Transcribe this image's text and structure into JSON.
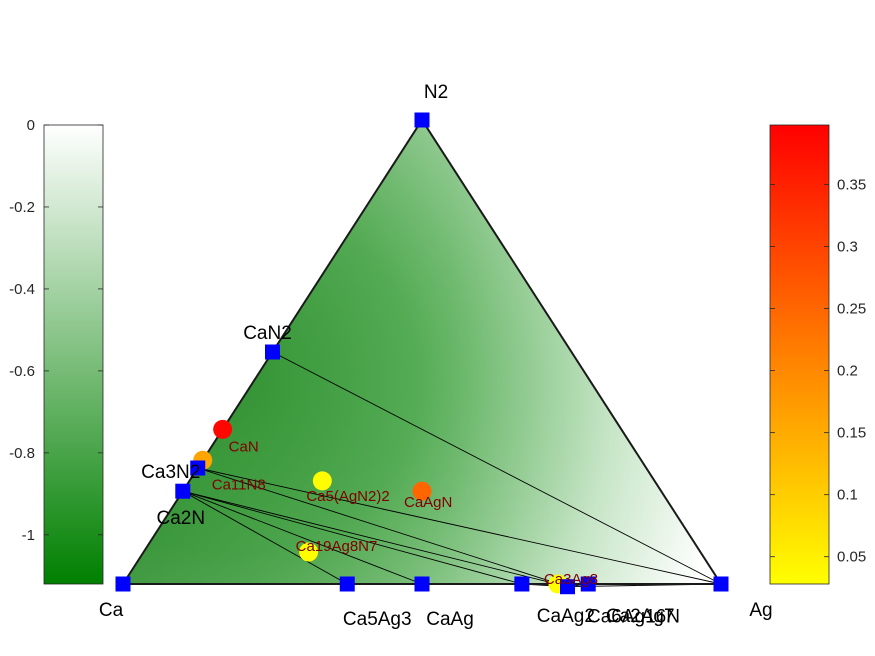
{
  "chart_data": {
    "type": "ternary-phase-diagram",
    "corners": {
      "left": "Ca",
      "right": "Ag",
      "top": "N2"
    },
    "stable_phases": [
      {
        "name": "Ca",
        "composition": {
          "Ca": 1,
          "Ag": 0,
          "N2": 0
        }
      },
      {
        "name": "Ag",
        "composition": {
          "Ca": 0,
          "Ag": 1,
          "N2": 0
        }
      },
      {
        "name": "N2",
        "composition": {
          "Ca": 0,
          "Ag": 0,
          "N2": 1
        }
      },
      {
        "name": "CaN2",
        "composition": {
          "Ca": 0.5,
          "Ag": 0,
          "N2": 0.5
        }
      },
      {
        "name": "Ca3N2",
        "composition": {
          "Ca": 0.75,
          "Ag": 0,
          "N2": 0.25
        }
      },
      {
        "name": "Ca2N",
        "composition": {
          "Ca": 0.8,
          "Ag": 0,
          "N2": 0.2
        }
      },
      {
        "name": "Ca5Ag3",
        "composition": {
          "Ca": 0.625,
          "Ag": 0.375,
          "N2": 0
        }
      },
      {
        "name": "CaAg",
        "composition": {
          "Ca": 0.5,
          "Ag": 0.5,
          "N2": 0
        }
      },
      {
        "name": "CaAg2",
        "composition": {
          "Ca": 0.333,
          "Ag": 0.667,
          "N2": 0
        }
      },
      {
        "name": "Ca2Ag7",
        "composition": {
          "Ca": 0.222,
          "Ag": 0.778,
          "N2": 0
        }
      },
      {
        "name": "Ca6Ag16N",
        "composition": {
          "Ca": 0.2727,
          "Ag": 0.7273,
          "N2": 0.0227
        }
      }
    ],
    "unstable_phases": [
      {
        "name": "CaN",
        "composition": {
          "Ca": 0.6667,
          "Ag": 0,
          "N2": 0.3333
        },
        "e_above_hull": 0.39
      },
      {
        "name": "Ca11N8",
        "composition": {
          "Ca": 0.7333,
          "Ag": 0,
          "N2": 0.2667
        },
        "e_above_hull": 0.16
      },
      {
        "name": "Ca5(AgN2)2",
        "composition": {
          "Ca": 0.5556,
          "Ag": 0.2222,
          "N2": 0.2222
        },
        "e_above_hull": 0.03
      },
      {
        "name": "CaAgN",
        "composition": {
          "Ca": 0.4,
          "Ag": 0.4,
          "N2": 0.2
        },
        "e_above_hull": 0.25
      },
      {
        "name": "Ca19Ag8N7",
        "composition": {
          "Ca": 0.6552,
          "Ag": 0.2759,
          "N2": 0.069
        },
        "e_above_hull": 0.03
      },
      {
        "name": "Ca3Ag8",
        "composition": {
          "Ca": 0.2727,
          "Ag": 0.7273,
          "N2": 0
        },
        "e_above_hull": 0.03
      }
    ],
    "tie_lines": [
      [
        "CaN2",
        "Ag"
      ],
      [
        "Ca3N2",
        "Ag"
      ],
      [
        "Ca3N2",
        "Ca6Ag16N"
      ],
      [
        "Ca2N",
        "Ca6Ag16N"
      ],
      [
        "Ca2N",
        "CaAg2"
      ],
      [
        "Ca2N",
        "CaAg"
      ],
      [
        "Ca2N",
        "Ca5Ag3"
      ],
      [
        "Ca6Ag16N",
        "Ag"
      ],
      [
        "Ca6Ag16N",
        "Ca2Ag7"
      ],
      [
        "Ca6Ag16N",
        "CaAg2"
      ]
    ],
    "formation_energy_colorbar": {
      "ticks": [
        0,
        -0.2,
        -0.4,
        -0.6,
        -0.8,
        -1
      ],
      "range": [
        -1.12,
        0
      ],
      "color_low": "#008000",
      "color_high": "#ffffff"
    },
    "e_above_hull_colorbar": {
      "ticks": [
        0.05,
        0.1,
        0.15,
        0.2,
        0.25,
        0.3,
        0.35
      ],
      "range": [
        0.028,
        0.398
      ],
      "color_low": "#ffff00",
      "color_high": "#ff0000"
    },
    "colors": {
      "stable_marker": "#0000ff",
      "unstable_label": "#800000",
      "tie_line": "#000000"
    }
  }
}
